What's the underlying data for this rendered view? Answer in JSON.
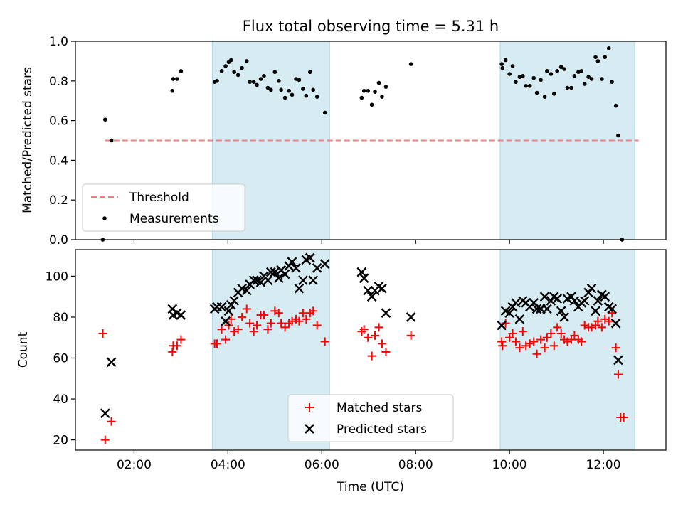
{
  "chart_data": [
    {
      "type": "scatter",
      "title": "Flux total observing time = 5.31 h",
      "ylabel": "Matched/Predicted stars",
      "xlabel": "",
      "xlim": [
        "00:45",
        "13:20"
      ],
      "ylim": [
        0,
        1.0
      ],
      "yticks": [
        "0.0",
        "0.2",
        "0.4",
        "0.6",
        "0.8",
        "1.0"
      ],
      "xticks": [
        "02:00",
        "04:00",
        "06:00",
        "08:00",
        "10:00",
        "12:00"
      ],
      "shaded_intervals": [
        [
          "03:40",
          "06:10"
        ],
        [
          "09:48",
          "12:40"
        ]
      ],
      "shade_color": "#add8e6",
      "legend_position": "lower-left",
      "threshold": {
        "name": "Threshold",
        "x": [
          "01:23",
          "12:45"
        ],
        "y": 0.5,
        "color": "#f08080"
      },
      "series": [
        {
          "name": "Measurements",
          "color": "#000000",
          "points": [
            [
              "01:20",
              0.0
            ],
            [
              "01:23",
              0.605
            ],
            [
              "01:31",
              0.5
            ],
            [
              "02:49",
              0.75
            ],
            [
              "02:50",
              0.81
            ],
            [
              "02:55",
              0.81
            ],
            [
              "03:00",
              0.85
            ],
            [
              "03:43",
              0.795
            ],
            [
              "03:46",
              0.8
            ],
            [
              "03:52",
              0.85
            ],
            [
              "03:57",
              0.875
            ],
            [
              "04:01",
              0.895
            ],
            [
              "04:04",
              0.905
            ],
            [
              "04:08",
              0.845
            ],
            [
              "04:13",
              0.83
            ],
            [
              "04:18",
              0.865
            ],
            [
              "04:24",
              0.9
            ],
            [
              "04:28",
              0.795
            ],
            [
              "04:33",
              0.795
            ],
            [
              "04:37",
              0.78
            ],
            [
              "04:42",
              0.81
            ],
            [
              "04:46",
              0.825
            ],
            [
              "04:51",
              0.765
            ],
            [
              "04:55",
              0.755
            ],
            [
              "05:00",
              0.845
            ],
            [
              "05:05",
              0.8
            ],
            [
              "05:08",
              0.755
            ],
            [
              "05:13",
              0.715
            ],
            [
              "05:18",
              0.75
            ],
            [
              "05:22",
              0.73
            ],
            [
              "05:27",
              0.81
            ],
            [
              "05:31",
              0.805
            ],
            [
              "05:36",
              0.76
            ],
            [
              "05:40",
              0.725
            ],
            [
              "05:45",
              0.845
            ],
            [
              "05:49",
              0.755
            ],
            [
              "05:54",
              0.72
            ],
            [
              "06:04",
              0.64
            ],
            [
              "06:51",
              0.715
            ],
            [
              "06:54",
              0.75
            ],
            [
              "06:59",
              0.75
            ],
            [
              "07:04",
              0.68
            ],
            [
              "07:08",
              0.745
            ],
            [
              "07:13",
              0.79
            ],
            [
              "07:17",
              0.72
            ],
            [
              "07:22",
              0.77
            ],
            [
              "07:54",
              0.885
            ],
            [
              "09:50",
              0.885
            ],
            [
              "09:51",
              0.865
            ],
            [
              "09:55",
              0.905
            ],
            [
              "10:00",
              0.835
            ],
            [
              "10:04",
              0.875
            ],
            [
              "10:08",
              0.795
            ],
            [
              "10:13",
              0.82
            ],
            [
              "10:17",
              0.825
            ],
            [
              "10:21",
              0.775
            ],
            [
              "10:26",
              0.775
            ],
            [
              "10:31",
              0.815
            ],
            [
              "10:35",
              0.74
            ],
            [
              "10:40",
              0.805
            ],
            [
              "10:45",
              0.72
            ],
            [
              "10:48",
              0.85
            ],
            [
              "10:53",
              0.835
            ],
            [
              "10:57",
              0.735
            ],
            [
              "11:01",
              0.85
            ],
            [
              "11:06",
              0.87
            ],
            [
              "11:10",
              0.86
            ],
            [
              "11:14",
              0.765
            ],
            [
              "11:19",
              0.765
            ],
            [
              "11:23",
              0.825
            ],
            [
              "11:28",
              0.845
            ],
            [
              "11:32",
              0.85
            ],
            [
              "11:36",
              0.785
            ],
            [
              "11:41",
              0.82
            ],
            [
              "11:45",
              0.81
            ],
            [
              "11:50",
              0.92
            ],
            [
              "11:53",
              0.9
            ],
            [
              "11:58",
              0.81
            ],
            [
              "12:02",
              0.92
            ],
            [
              "12:07",
              0.965
            ],
            [
              "12:11",
              0.795
            ],
            [
              "12:16",
              0.675
            ],
            [
              "12:19",
              0.525
            ],
            [
              "12:24",
              0.0
            ]
          ]
        }
      ]
    },
    {
      "type": "scatter",
      "title": "",
      "ylabel": "Count",
      "xlabel": "Time (UTC)",
      "xlim": [
        "00:45",
        "13:20"
      ],
      "ylim": [
        15,
        113
      ],
      "yticks": [
        "20",
        "40",
        "60",
        "80",
        "100"
      ],
      "xticks": [
        "02:00",
        "04:00",
        "06:00",
        "08:00",
        "10:00",
        "12:00"
      ],
      "shaded_intervals": [
        [
          "03:40",
          "06:10"
        ],
        [
          "09:48",
          "12:40"
        ]
      ],
      "legend_position": "lower-center",
      "series": [
        {
          "name": "Matched stars",
          "marker": "plus",
          "color": "#ff0000",
          "points": [
            [
              "01:20",
              72
            ],
            [
              "01:23",
              20
            ],
            [
              "01:31",
              29
            ],
            [
              "02:49",
              63
            ],
            [
              "02:50",
              66
            ],
            [
              "02:55",
              66
            ],
            [
              "03:00",
              69
            ],
            [
              "03:43",
              67
            ],
            [
              "03:46",
              67
            ],
            [
              "03:52",
              74
            ],
            [
              "03:57",
              69
            ],
            [
              "04:01",
              76
            ],
            [
              "04:04",
              79
            ],
            [
              "04:08",
              73
            ],
            [
              "04:13",
              74
            ],
            [
              "04:18",
              80
            ],
            [
              "04:24",
              84
            ],
            [
              "04:28",
              77
            ],
            [
              "04:33",
              73
            ],
            [
              "04:37",
              76
            ],
            [
              "04:42",
              81
            ],
            [
              "04:46",
              81
            ],
            [
              "04:51",
              74
            ],
            [
              "04:55",
              77
            ],
            [
              "05:00",
              83
            ],
            [
              "05:05",
              82
            ],
            [
              "05:08",
              77
            ],
            [
              "05:13",
              75
            ],
            [
              "05:18",
              77
            ],
            [
              "05:22",
              78
            ],
            [
              "05:27",
              79
            ],
            [
              "05:31",
              78
            ],
            [
              "05:36",
              82
            ],
            [
              "05:40",
              79
            ],
            [
              "05:45",
              82
            ],
            [
              "05:49",
              83
            ],
            [
              "05:54",
              76
            ],
            [
              "06:04",
              68
            ],
            [
              "06:51",
              73
            ],
            [
              "06:54",
              74
            ],
            [
              "06:59",
              70
            ],
            [
              "07:04",
              61
            ],
            [
              "07:08",
              71
            ],
            [
              "07:13",
              75
            ],
            [
              "07:17",
              67
            ],
            [
              "07:22",
              63
            ],
            [
              "07:54",
              71
            ],
            [
              "09:50",
              68
            ],
            [
              "09:51",
              66
            ],
            [
              "09:55",
              77
            ],
            [
              "10:00",
              70
            ],
            [
              "10:04",
              72
            ],
            [
              "10:08",
              68
            ],
            [
              "10:13",
              65
            ],
            [
              "10:17",
              73
            ],
            [
              "10:21",
              66
            ],
            [
              "10:26",
              67
            ],
            [
              "10:31",
              68
            ],
            [
              "10:35",
              62
            ],
            [
              "10:40",
              69
            ],
            [
              "10:45",
              65
            ],
            [
              "10:48",
              70
            ],
            [
              "10:53",
              72
            ],
            [
              "10:57",
              66
            ],
            [
              "11:01",
              75
            ],
            [
              "11:06",
              72
            ],
            [
              "11:10",
              69
            ],
            [
              "11:14",
              68
            ],
            [
              "11:19",
              69
            ],
            [
              "11:23",
              71
            ],
            [
              "11:28",
              69
            ],
            [
              "11:32",
              68
            ],
            [
              "11:36",
              76
            ],
            [
              "11:41",
              75
            ],
            [
              "11:45",
              75
            ],
            [
              "11:50",
              76
            ],
            [
              "11:53",
              78
            ],
            [
              "11:58",
              75
            ],
            [
              "12:02",
              79
            ],
            [
              "12:07",
              78
            ],
            [
              "12:11",
              82
            ],
            [
              "12:16",
              65
            ],
            [
              "12:19",
              52
            ],
            [
              "12:22",
              31
            ],
            [
              "12:26",
              31
            ]
          ]
        },
        {
          "name": "Predicted stars",
          "marker": "x",
          "color": "#000000",
          "points": [
            [
              "01:23",
              33
            ],
            [
              "01:31",
              58
            ],
            [
              "02:49",
              84
            ],
            [
              "02:50",
              81
            ],
            [
              "02:55",
              82
            ],
            [
              "03:00",
              81
            ],
            [
              "03:43",
              84
            ],
            [
              "03:46",
              85
            ],
            [
              "03:52",
              85
            ],
            [
              "03:57",
              78
            ],
            [
              "04:01",
              83
            ],
            [
              "04:04",
              86
            ],
            [
              "04:08",
              88
            ],
            [
              "04:13",
              92
            ],
            [
              "04:18",
              94
            ],
            [
              "04:24",
              93
            ],
            [
              "04:28",
              96
            ],
            [
              "04:33",
              98
            ],
            [
              "04:37",
              98
            ],
            [
              "04:42",
              97
            ],
            [
              "04:46",
              100
            ],
            [
              "04:51",
              98
            ],
            [
              "04:55",
              102
            ],
            [
              "05:00",
              102
            ],
            [
              "05:05",
              99
            ],
            [
              "05:08",
              103
            ],
            [
              "05:13",
              101
            ],
            [
              "05:18",
              105
            ],
            [
              "05:22",
              107
            ],
            [
              "05:27",
              104
            ],
            [
              "05:31",
              94
            ],
            [
              "05:36",
              98
            ],
            [
              "05:40",
              108
            ],
            [
              "05:45",
              109
            ],
            [
              "05:49",
              98
            ],
            [
              "05:54",
              104
            ],
            [
              "06:04",
              106
            ],
            [
              "06:51",
              102
            ],
            [
              "06:54",
              99
            ],
            [
              "06:59",
              93
            ],
            [
              "07:04",
              90
            ],
            [
              "07:08",
              93
            ],
            [
              "07:13",
              95
            ],
            [
              "07:17",
              94
            ],
            [
              "07:22",
              82
            ],
            [
              "07:54",
              80
            ],
            [
              "09:50",
              76
            ],
            [
              "09:55",
              83
            ],
            [
              "10:00",
              82
            ],
            [
              "10:04",
              85
            ],
            [
              "10:08",
              87
            ],
            [
              "10:13",
              79
            ],
            [
              "10:17",
              88
            ],
            [
              "10:21",
              87
            ],
            [
              "10:26",
              85
            ],
            [
              "10:31",
              87
            ],
            [
              "10:35",
              84
            ],
            [
              "10:40",
              84
            ],
            [
              "10:45",
              90
            ],
            [
              "10:48",
              84
            ],
            [
              "10:53",
              88
            ],
            [
              "10:57",
              90
            ],
            [
              "11:01",
              89
            ],
            [
              "11:06",
              83
            ],
            [
              "11:10",
              80
            ],
            [
              "11:14",
              89
            ],
            [
              "11:19",
              90
            ],
            [
              "11:23",
              88
            ],
            [
              "11:28",
              85
            ],
            [
              "11:32",
              87
            ],
            [
              "11:36",
              88
            ],
            [
              "11:41",
              92
            ],
            [
              "11:45",
              94
            ],
            [
              "11:50",
              83
            ],
            [
              "11:53",
              88
            ],
            [
              "11:58",
              91
            ],
            [
              "12:02",
              90
            ],
            [
              "12:07",
              85
            ],
            [
              "12:11",
              84
            ],
            [
              "12:16",
              77
            ],
            [
              "12:19",
              59
            ]
          ]
        }
      ]
    }
  ]
}
